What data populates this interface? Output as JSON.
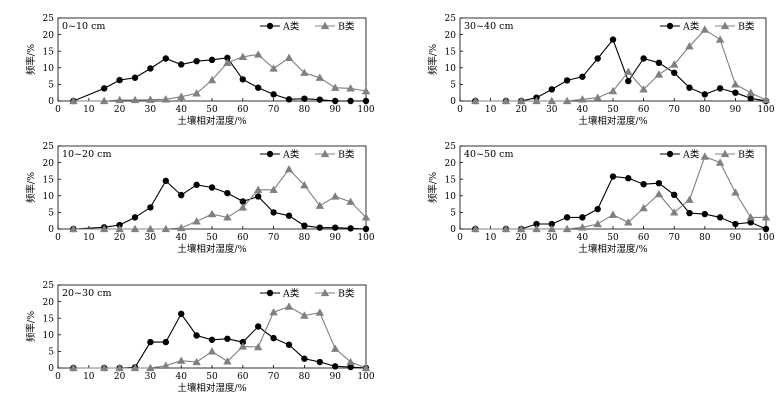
{
  "chart_data": [
    {
      "type": "line",
      "title": "0~10 cm",
      "xlabel": "土壤相对湿度/%",
      "ylabel": "频率/%",
      "xlim": [
        0,
        100
      ],
      "ylim": [
        0,
        25
      ],
      "xticks": [
        0,
        10,
        20,
        30,
        40,
        50,
        60,
        70,
        80,
        90,
        100
      ],
      "yticks": [
        0,
        5,
        10,
        15,
        20,
        25
      ],
      "x": [
        5,
        15,
        20,
        25,
        30,
        35,
        40,
        45,
        50,
        55,
        60,
        65,
        70,
        75,
        80,
        85,
        90,
        95,
        100
      ],
      "series": [
        {
          "name": "A类",
          "values": [
            0,
            3.8,
            6.3,
            7,
            9.8,
            12.8,
            11,
            12,
            12.4,
            13,
            6.5,
            4,
            2,
            0.5,
            0.7,
            0.4,
            0,
            0,
            0
          ]
        },
        {
          "name": "B类",
          "values": [
            0,
            0,
            0.3,
            0.3,
            0.4,
            0.5,
            1.3,
            2.3,
            6.3,
            11.5,
            13.3,
            14,
            9.8,
            13,
            8.5,
            7,
            4,
            3.8,
            3
          ]
        }
      ]
    },
    {
      "type": "line",
      "title": "10~20 cm",
      "xlabel": "土壤相对湿度/%",
      "ylabel": "频率/%",
      "xlim": [
        0,
        100
      ],
      "ylim": [
        0,
        25
      ],
      "xticks": [
        0,
        10,
        20,
        30,
        40,
        50,
        60,
        70,
        80,
        90,
        100
      ],
      "yticks": [
        0,
        5,
        10,
        15,
        20,
        25
      ],
      "x": [
        5,
        15,
        20,
        25,
        30,
        35,
        40,
        45,
        50,
        55,
        60,
        65,
        70,
        75,
        80,
        85,
        90,
        95,
        100
      ],
      "series": [
        {
          "name": "A类",
          "values": [
            0,
            0.5,
            1.2,
            3.5,
            6.5,
            14.5,
            10.2,
            13.3,
            12.5,
            10.8,
            8.3,
            9.8,
            5,
            4,
            1,
            0.4,
            0.4,
            0.2,
            0
          ]
        },
        {
          "name": "B类",
          "values": [
            0,
            0,
            0,
            0,
            0,
            0,
            0.3,
            2.3,
            4.5,
            3.5,
            6.5,
            11.8,
            11.8,
            18,
            13.2,
            7,
            9.8,
            8.2,
            3.5
          ]
        }
      ]
    },
    {
      "type": "line",
      "title": "20~30 cm",
      "xlabel": "土壤相对湿度/%",
      "ylabel": "频率/%",
      "xlim": [
        0,
        100
      ],
      "ylim": [
        0,
        25
      ],
      "xticks": [
        0,
        10,
        20,
        30,
        40,
        50,
        60,
        70,
        80,
        90,
        100
      ],
      "yticks": [
        0,
        5,
        10,
        15,
        20,
        25
      ],
      "x": [
        5,
        15,
        20,
        25,
        30,
        35,
        40,
        45,
        50,
        55,
        60,
        65,
        70,
        75,
        80,
        85,
        90,
        95,
        100
      ],
      "series": [
        {
          "name": "A类",
          "values": [
            0,
            0,
            0,
            0.2,
            7.8,
            7.8,
            16.3,
            9.8,
            8.5,
            8.8,
            7.8,
            12.5,
            9,
            7,
            2.8,
            1.8,
            0.5,
            0.3,
            0
          ]
        },
        {
          "name": "B类",
          "values": [
            0,
            0,
            0,
            0,
            0,
            0.7,
            2.2,
            1.8,
            5,
            2,
            6.5,
            6.3,
            16.8,
            18.5,
            15.8,
            16.7,
            5.8,
            1.8,
            0
          ]
        }
      ]
    },
    {
      "type": "line",
      "title": "30~40 cm",
      "xlabel": "土壤相对湿度/%",
      "ylabel": "频率/%",
      "xlim": [
        0,
        100
      ],
      "ylim": [
        0,
        25
      ],
      "xticks": [
        0,
        10,
        20,
        30,
        40,
        50,
        60,
        70,
        80,
        90,
        100
      ],
      "yticks": [
        0,
        5,
        10,
        15,
        20,
        25
      ],
      "x": [
        5,
        15,
        20,
        25,
        30,
        35,
        40,
        45,
        50,
        55,
        60,
        65,
        70,
        75,
        80,
        85,
        90,
        95,
        100
      ],
      "series": [
        {
          "name": "A类",
          "values": [
            0,
            0,
            0,
            1,
            3.5,
            6.2,
            7.3,
            12.8,
            18.5,
            6,
            12.8,
            11.5,
            8.5,
            4,
            2,
            3.8,
            2.5,
            0.8,
            0
          ]
        },
        {
          "name": "B类",
          "values": [
            0,
            0,
            0,
            0,
            0,
            0,
            0.5,
            1,
            3,
            8.8,
            3.5,
            8,
            11,
            16.5,
            21.5,
            18.5,
            5,
            2.5,
            0.3
          ]
        }
      ]
    },
    {
      "type": "line",
      "title": "40~50 cm",
      "xlabel": "土壤相对湿度/%",
      "ylabel": "频率/%",
      "xlim": [
        0,
        100
      ],
      "ylim": [
        0,
        25
      ],
      "xticks": [
        0,
        10,
        20,
        30,
        40,
        50,
        60,
        70,
        80,
        90,
        100
      ],
      "yticks": [
        0,
        5,
        10,
        15,
        20,
        25
      ],
      "x": [
        5,
        15,
        20,
        25,
        30,
        35,
        40,
        45,
        50,
        55,
        60,
        65,
        70,
        75,
        80,
        85,
        90,
        95,
        100
      ],
      "series": [
        {
          "name": "A类",
          "values": [
            0,
            0,
            0,
            1.5,
            1.5,
            3.5,
            3.5,
            6,
            15.8,
            15.3,
            13.5,
            13.8,
            10.3,
            4.8,
            4.5,
            3.5,
            1.5,
            2,
            0
          ]
        },
        {
          "name": "B类",
          "values": [
            0,
            0,
            0,
            0,
            0,
            0,
            0.5,
            1.5,
            4.3,
            2,
            6.3,
            10.5,
            5,
            8.8,
            21.8,
            20,
            11,
            3.5,
            3.5
          ]
        }
      ]
    }
  ]
}
